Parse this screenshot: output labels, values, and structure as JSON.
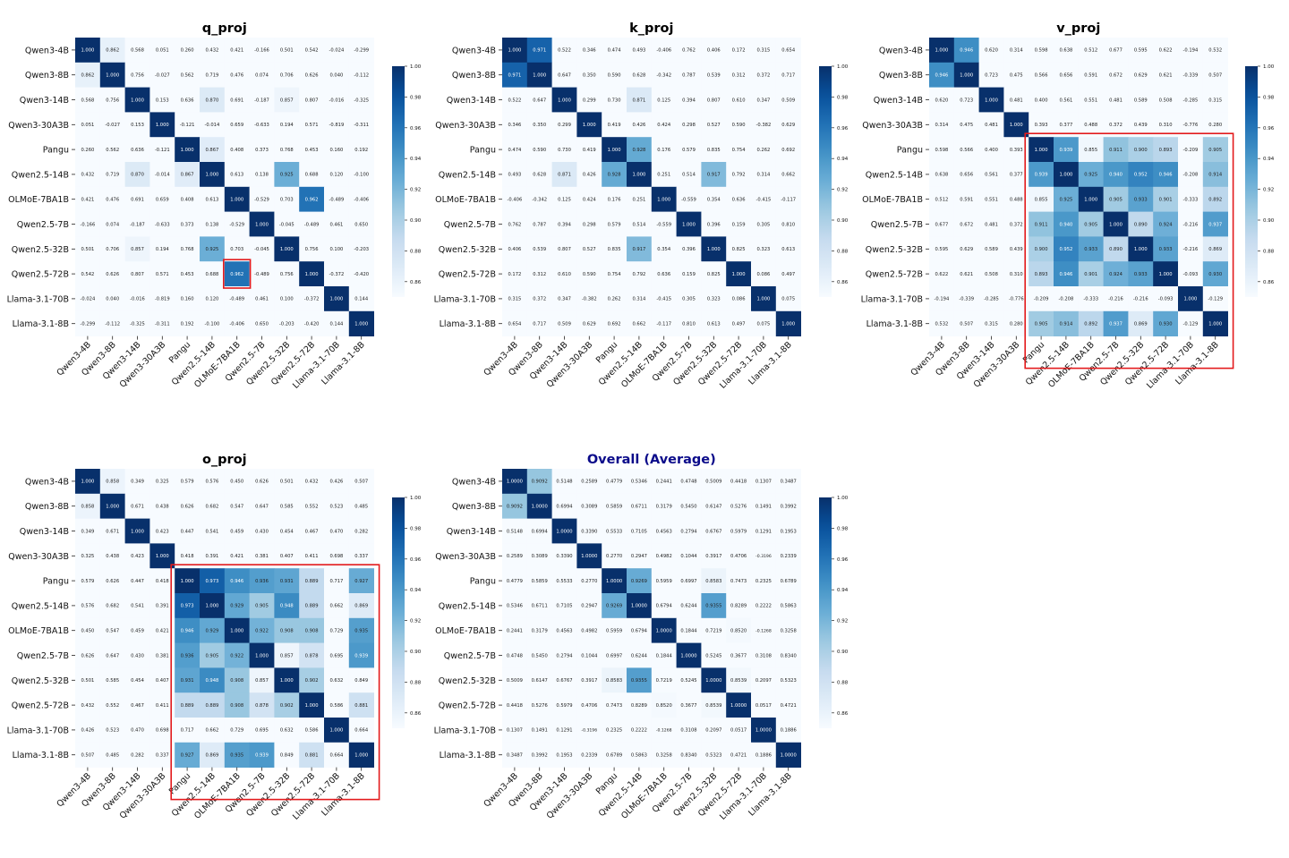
{
  "models": [
    "Qwen3-4B",
    "Qwen3-8B",
    "Qwen3-14B",
    "Qwen3-30A3B",
    "Pangu",
    "Qwen2.5-14B",
    "OLMoE-7BA1B",
    "Qwen2.5-7B",
    "Qwen2.5-32B",
    "Qwen2.5-72B",
    "Llama-3.1-70B",
    "Llama-3.1-8B"
  ],
  "colorbar_ticks": [
    "1.00",
    "0.98",
    "0.96",
    "0.94",
    "0.92",
    "0.90",
    "0.88",
    "0.86"
  ],
  "colors": {
    "title": "#000000",
    "overall_title": "#0b0b8a",
    "highlight": "#e31a1c",
    "cmap_low": "#f7fbff",
    "cmap_high": "#08306b"
  },
  "chart_data": [
    {
      "type": "heatmap",
      "title": "q_proj",
      "vmin": 0.85,
      "vmax": 1.0,
      "highlight": {
        "rows": [
          9,
          9
        ],
        "cols": [
          6,
          6
        ]
      },
      "values": [
        [
          "1.000",
          "0.862",
          "0.568",
          "0.051",
          "0.260",
          "0.432",
          "0.421",
          "-0.166",
          "0.501",
          "0.542",
          "-0.024",
          "-0.299"
        ],
        [
          "0.862",
          "1.000",
          "0.756",
          "-0.027",
          "0.562",
          "0.719",
          "0.476",
          "0.074",
          "0.706",
          "0.626",
          "0.040",
          "-0.112"
        ],
        [
          "0.568",
          "0.756",
          "1.000",
          "0.153",
          "0.636",
          "0.870",
          "0.691",
          "-0.187",
          "0.857",
          "0.807",
          "-0.016",
          "-0.325"
        ],
        [
          "0.051",
          "-0.027",
          "0.153",
          "1.000",
          "-0.121",
          "-0.014",
          "0.659",
          "-0.633",
          "0.194",
          "0.571",
          "-0.819",
          "-0.311"
        ],
        [
          "0.260",
          "0.562",
          "0.636",
          "-0.121",
          "1.000",
          "0.867",
          "0.408",
          "0.373",
          "0.768",
          "0.453",
          "0.160",
          "0.192"
        ],
        [
          "0.432",
          "0.719",
          "0.870",
          "-0.014",
          "0.867",
          "1.000",
          "0.613",
          "0.138",
          "0.925",
          "0.688",
          "0.120",
          "-0.100"
        ],
        [
          "0.421",
          "0.476",
          "0.691",
          "0.659",
          "0.408",
          "0.613",
          "1.000",
          "-0.529",
          "0.703",
          "0.962",
          "-0.489",
          "-0.406"
        ],
        [
          "-0.166",
          "0.074",
          "-0.187",
          "-0.633",
          "0.373",
          "0.138",
          "-0.529",
          "1.000",
          "-0.045",
          "-0.489",
          "0.461",
          "0.650"
        ],
        [
          "0.501",
          "0.706",
          "0.857",
          "0.194",
          "0.768",
          "0.925",
          "0.703",
          "-0.045",
          "1.000",
          "0.756",
          "0.100",
          "-0.203"
        ],
        [
          "0.542",
          "0.626",
          "0.807",
          "0.571",
          "0.453",
          "0.688",
          "0.962",
          "-0.489",
          "0.756",
          "1.000",
          "-0.372",
          "-0.420"
        ],
        [
          "-0.024",
          "0.040",
          "-0.016",
          "-0.819",
          "0.160",
          "0.120",
          "-0.489",
          "0.461",
          "0.100",
          "-0.372",
          "1.000",
          "0.144"
        ],
        [
          "-0.299",
          "-0.112",
          "-0.325",
          "-0.311",
          "0.192",
          "-0.100",
          "-0.406",
          "0.650",
          "-0.203",
          "-0.420",
          "0.144",
          "1.000"
        ]
      ]
    },
    {
      "type": "heatmap",
      "title": "k_proj",
      "vmin": 0.85,
      "vmax": 1.0,
      "values": [
        [
          "1.000",
          "0.971",
          "0.522",
          "0.346",
          "0.474",
          "0.493",
          "-0.406",
          "0.762",
          "0.406",
          "0.172",
          "0.315",
          "0.654"
        ],
        [
          "0.971",
          "1.000",
          "0.647",
          "0.350",
          "0.590",
          "0.628",
          "-0.342",
          "0.787",
          "0.539",
          "0.312",
          "0.372",
          "0.717"
        ],
        [
          "0.522",
          "0.647",
          "1.000",
          "0.299",
          "0.730",
          "0.871",
          "0.125",
          "0.394",
          "0.807",
          "0.610",
          "0.347",
          "0.509"
        ],
        [
          "0.346",
          "0.350",
          "0.299",
          "1.000",
          "0.419",
          "0.426",
          "0.424",
          "0.298",
          "0.527",
          "0.590",
          "-0.382",
          "0.629"
        ],
        [
          "0.474",
          "0.590",
          "0.730",
          "0.419",
          "1.000",
          "0.928",
          "0.176",
          "0.579",
          "0.835",
          "0.754",
          "0.262",
          "0.692"
        ],
        [
          "0.493",
          "0.628",
          "0.871",
          "0.426",
          "0.928",
          "1.000",
          "0.251",
          "0.514",
          "0.917",
          "0.792",
          "0.314",
          "0.662"
        ],
        [
          "-0.406",
          "-0.342",
          "0.125",
          "0.424",
          "0.176",
          "0.251",
          "1.000",
          "-0.559",
          "0.354",
          "0.636",
          "-0.415",
          "-0.117"
        ],
        [
          "0.762",
          "0.787",
          "0.394",
          "0.298",
          "0.579",
          "0.514",
          "-0.559",
          "1.000",
          "0.396",
          "0.159",
          "0.305",
          "0.810"
        ],
        [
          "0.406",
          "0.539",
          "0.807",
          "0.527",
          "0.835",
          "0.917",
          "0.354",
          "0.396",
          "1.000",
          "0.825",
          "0.323",
          "0.613"
        ],
        [
          "0.172",
          "0.312",
          "0.610",
          "0.590",
          "0.754",
          "0.792",
          "0.636",
          "0.159",
          "0.825",
          "1.000",
          "0.086",
          "0.497"
        ],
        [
          "0.315",
          "0.372",
          "0.347",
          "-0.382",
          "0.262",
          "0.314",
          "-0.415",
          "0.305",
          "0.323",
          "0.086",
          "1.000",
          "0.075"
        ],
        [
          "0.654",
          "0.717",
          "0.509",
          "0.629",
          "0.692",
          "0.662",
          "-0.117",
          "0.810",
          "0.613",
          "0.497",
          "0.075",
          "1.000"
        ]
      ]
    },
    {
      "type": "heatmap",
      "title": "v_proj",
      "vmin": 0.85,
      "vmax": 1.0,
      "highlight": {
        "rows": [
          4,
          11
        ],
        "cols": [
          4,
          11
        ]
      },
      "values": [
        [
          "1.000",
          "0.946",
          "0.620",
          "0.314",
          "0.598",
          "0.638",
          "0.512",
          "0.677",
          "0.595",
          "0.622",
          "-0.194",
          "0.532"
        ],
        [
          "0.946",
          "1.000",
          "0.723",
          "0.475",
          "0.566",
          "0.656",
          "0.591",
          "0.672",
          "0.629",
          "0.621",
          "-0.339",
          "0.507"
        ],
        [
          "0.620",
          "0.723",
          "1.000",
          "0.481",
          "0.400",
          "0.561",
          "0.551",
          "0.481",
          "0.589",
          "0.508",
          "-0.285",
          "0.315"
        ],
        [
          "0.314",
          "0.475",
          "0.481",
          "1.000",
          "0.393",
          "0.377",
          "0.488",
          "0.372",
          "0.439",
          "0.310",
          "-0.776",
          "0.280"
        ],
        [
          "0.598",
          "0.566",
          "0.400",
          "0.393",
          "1.000",
          "0.939",
          "0.855",
          "0.911",
          "0.900",
          "0.893",
          "-0.209",
          "0.905"
        ],
        [
          "0.638",
          "0.656",
          "0.561",
          "0.377",
          "0.939",
          "1.000",
          "0.925",
          "0.940",
          "0.952",
          "0.946",
          "-0.208",
          "0.914"
        ],
        [
          "0.512",
          "0.591",
          "0.551",
          "0.488",
          "0.855",
          "0.925",
          "1.000",
          "0.905",
          "0.933",
          "0.901",
          "-0.333",
          "0.892"
        ],
        [
          "0.677",
          "0.672",
          "0.481",
          "0.372",
          "0.911",
          "0.940",
          "0.905",
          "1.000",
          "0.890",
          "0.924",
          "-0.216",
          "0.937"
        ],
        [
          "0.595",
          "0.629",
          "0.589",
          "0.439",
          "0.900",
          "0.952",
          "0.933",
          "0.890",
          "1.000",
          "0.933",
          "-0.216",
          "0.869"
        ],
        [
          "0.622",
          "0.621",
          "0.508",
          "0.310",
          "0.893",
          "0.946",
          "0.901",
          "0.924",
          "0.933",
          "1.000",
          "-0.093",
          "0.930"
        ],
        [
          "-0.194",
          "-0.339",
          "-0.285",
          "-0.776",
          "-0.209",
          "-0.208",
          "-0.333",
          "-0.216",
          "-0.216",
          "-0.093",
          "1.000",
          "-0.129"
        ],
        [
          "0.532",
          "0.507",
          "0.315",
          "0.280",
          "0.905",
          "0.914",
          "0.892",
          "0.937",
          "0.869",
          "0.930",
          "-0.129",
          "1.000"
        ]
      ]
    },
    {
      "type": "heatmap",
      "title": "o_proj",
      "vmin": 0.85,
      "vmax": 1.0,
      "highlight": {
        "rows": [
          4,
          11
        ],
        "cols": [
          4,
          11
        ]
      },
      "values": [
        [
          "1.000",
          "0.858",
          "0.349",
          "0.325",
          "0.579",
          "0.576",
          "0.450",
          "0.626",
          "0.501",
          "0.432",
          "0.426",
          "0.507"
        ],
        [
          "0.858",
          "1.000",
          "0.671",
          "0.438",
          "0.626",
          "0.682",
          "0.547",
          "0.647",
          "0.585",
          "0.552",
          "0.523",
          "0.485"
        ],
        [
          "0.349",
          "0.671",
          "1.000",
          "0.423",
          "0.447",
          "0.541",
          "0.459",
          "0.430",
          "0.454",
          "0.467",
          "0.470",
          "0.282"
        ],
        [
          "0.325",
          "0.438",
          "0.423",
          "1.000",
          "0.418",
          "0.391",
          "0.421",
          "0.381",
          "0.407",
          "0.411",
          "0.698",
          "0.337"
        ],
        [
          "0.579",
          "0.626",
          "0.447",
          "0.418",
          "1.000",
          "0.973",
          "0.946",
          "0.936",
          "0.931",
          "0.889",
          "0.717",
          "0.927"
        ],
        [
          "0.576",
          "0.682",
          "0.541",
          "0.391",
          "0.973",
          "1.000",
          "0.929",
          "0.905",
          "0.948",
          "0.889",
          "0.662",
          "0.869"
        ],
        [
          "0.450",
          "0.547",
          "0.459",
          "0.421",
          "0.946",
          "0.929",
          "1.000",
          "0.922",
          "0.908",
          "0.908",
          "0.729",
          "0.935"
        ],
        [
          "0.626",
          "0.647",
          "0.430",
          "0.381",
          "0.936",
          "0.905",
          "0.922",
          "1.000",
          "0.857",
          "0.878",
          "0.695",
          "0.939"
        ],
        [
          "0.501",
          "0.585",
          "0.454",
          "0.407",
          "0.931",
          "0.948",
          "0.908",
          "0.857",
          "1.000",
          "0.902",
          "0.632",
          "0.849"
        ],
        [
          "0.432",
          "0.552",
          "0.467",
          "0.411",
          "0.889",
          "0.889",
          "0.908",
          "0.878",
          "0.902",
          "1.000",
          "0.586",
          "0.881"
        ],
        [
          "0.426",
          "0.523",
          "0.470",
          "0.698",
          "0.717",
          "0.662",
          "0.729",
          "0.695",
          "0.632",
          "0.586",
          "1.000",
          "0.664"
        ],
        [
          "0.507",
          "0.485",
          "0.282",
          "0.337",
          "0.927",
          "0.869",
          "0.935",
          "0.939",
          "0.849",
          "0.881",
          "0.664",
          "1.000"
        ]
      ]
    },
    {
      "type": "heatmap",
      "title": "Overall (Average)",
      "vmin": 0.85,
      "vmax": 1.0,
      "values": [
        [
          "1.0000",
          "0.9092",
          "0.5148",
          "0.2589",
          "0.4779",
          "0.5346",
          "0.2441",
          "0.4748",
          "0.5009",
          "0.4418",
          "0.1307",
          "0.3487"
        ],
        [
          "0.9092",
          "1.0000",
          "0.6994",
          "0.3089",
          "0.5859",
          "0.6711",
          "0.3179",
          "0.5450",
          "0.6147",
          "0.5276",
          "0.1491",
          "0.3992"
        ],
        [
          "0.5148",
          "0.6994",
          "1.0000",
          "0.3390",
          "0.5533",
          "0.7105",
          "0.4563",
          "0.2794",
          "0.6767",
          "0.5979",
          "0.1291",
          "0.1953"
        ],
        [
          "0.2589",
          "0.3089",
          "0.3390",
          "1.0000",
          "0.2770",
          "0.2947",
          "0.4982",
          "0.1044",
          "0.3917",
          "0.4706",
          "-0.3196",
          "0.2339"
        ],
        [
          "0.4779",
          "0.5859",
          "0.5533",
          "0.2770",
          "1.0000",
          "0.9269",
          "0.5959",
          "0.6997",
          "0.8583",
          "0.7473",
          "0.2325",
          "0.6789"
        ],
        [
          "0.5346",
          "0.6711",
          "0.7105",
          "0.2947",
          "0.9269",
          "1.0000",
          "0.6794",
          "0.6244",
          "0.9355",
          "0.8289",
          "0.2222",
          "0.5863"
        ],
        [
          "0.2441",
          "0.3179",
          "0.4563",
          "0.4982",
          "0.5959",
          "0.6794",
          "1.0000",
          "0.1844",
          "0.7219",
          "0.8520",
          "-0.1268",
          "0.3258"
        ],
        [
          "0.4748",
          "0.5450",
          "0.2794",
          "0.1044",
          "0.6997",
          "0.6244",
          "0.1844",
          "1.0000",
          "0.5245",
          "0.3677",
          "0.3108",
          "0.8340"
        ],
        [
          "0.5009",
          "0.6147",
          "0.6767",
          "0.3917",
          "0.8583",
          "0.9355",
          "0.7219",
          "0.5245",
          "1.0000",
          "0.8539",
          "0.2097",
          "0.5323"
        ],
        [
          "0.4418",
          "0.5276",
          "0.5979",
          "0.4706",
          "0.7473",
          "0.8289",
          "0.8520",
          "0.3677",
          "0.8539",
          "1.0000",
          "0.0517",
          "0.4721"
        ],
        [
          "0.1307",
          "0.1491",
          "0.1291",
          "-0.3196",
          "0.2325",
          "0.2222",
          "-0.1268",
          "0.3108",
          "0.2097",
          "0.0517",
          "1.0000",
          "0.1886"
        ],
        [
          "0.3487",
          "0.3992",
          "0.1953",
          "0.2339",
          "0.6789",
          "0.5863",
          "0.3258",
          "0.8340",
          "0.5323",
          "0.4721",
          "0.1886",
          "1.0000"
        ]
      ]
    }
  ]
}
